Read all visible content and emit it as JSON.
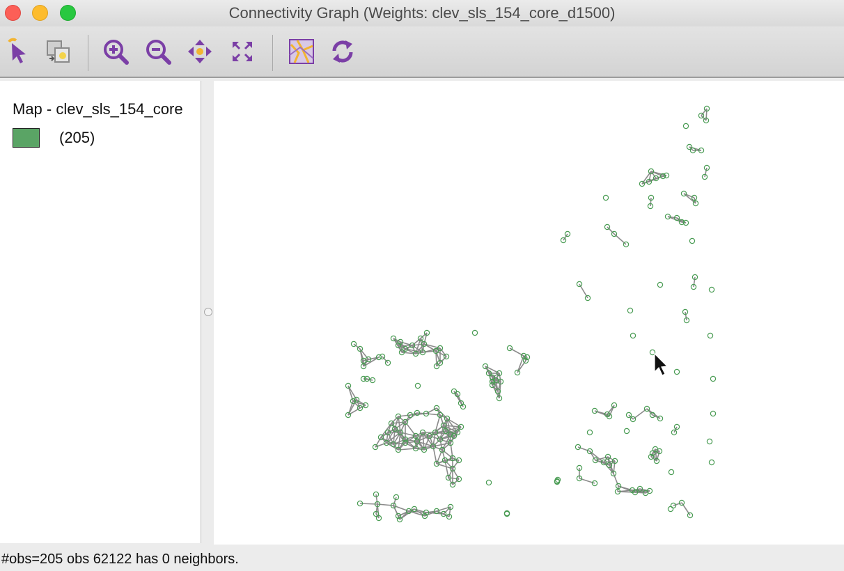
{
  "window": {
    "title": "Connectivity Graph (Weights: clev_sls_154_core_d1500)"
  },
  "toolbar": {
    "tools": [
      {
        "name": "select-tool",
        "icon": "arrow-cursor-icon"
      },
      {
        "name": "select-mode",
        "icon": "selection-copy-icon"
      },
      {
        "name": "zoom-in",
        "icon": "zoom-in-icon"
      },
      {
        "name": "zoom-out",
        "icon": "zoom-out-icon"
      },
      {
        "name": "pan",
        "icon": "pan-icon"
      },
      {
        "name": "full-extent",
        "icon": "full-extent-icon"
      },
      {
        "name": "toggle-map",
        "icon": "map-toggle-icon"
      },
      {
        "name": "refresh",
        "icon": "refresh-icon"
      }
    ]
  },
  "legend": {
    "title": "Map - clev_sls_154_core",
    "count": "(205)",
    "swatch_color": "#5aa465"
  },
  "colors": {
    "point": "#4a9c54",
    "edge": "#8a8a8a",
    "toolbar_icon": "#7b3fa6",
    "highlight": "#f3b431"
  },
  "status": {
    "text": "#obs=205 obs 62122 has 0 neighbors."
  }
}
